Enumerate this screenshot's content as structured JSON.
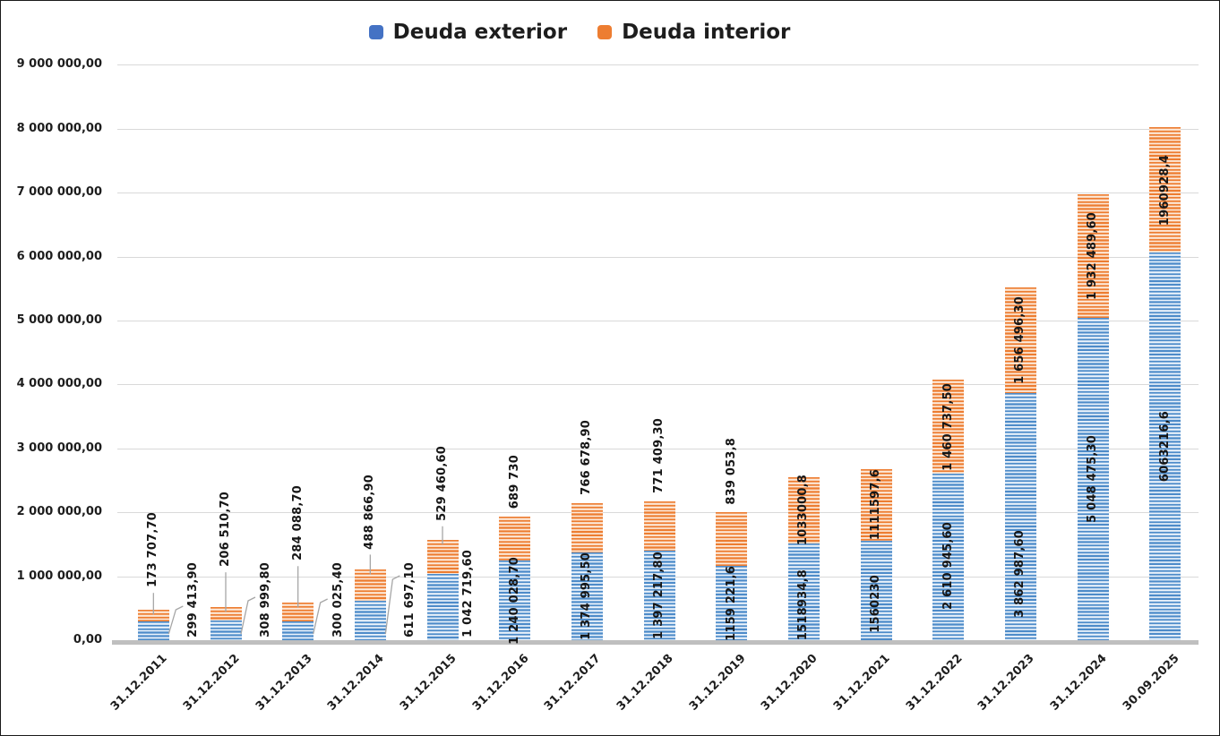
{
  "chart_data": {
    "type": "bar",
    "stacked": true,
    "title": "",
    "categories": [
      "31.12.2011",
      "31.12.2012",
      "31.12.2013",
      "31.12.2014",
      "31.12.2015",
      "31.12.2016",
      "31.12.2017",
      "31.12.2018",
      "31.12.2019",
      "31.12.2020",
      "31.12.2021",
      "31.12.2022",
      "31.12.2023",
      "31.12.2024",
      "30.09.2025"
    ],
    "series": [
      {
        "name": "Deuda exterior",
        "color": "#4472C4",
        "values": [
          299413.9,
          308999.8,
          300025.4,
          611697.1,
          1042719.6,
          1240028.7,
          1374995.5,
          1397217.8,
          1159221.6,
          1518934.8,
          1560230,
          2610945.6,
          3862987.6,
          5048475.3,
          6063216.6
        ],
        "labels": [
          "299 413,90",
          "308 999,80",
          "300 025,40",
          "611 697,10",
          "1 042 719,60",
          "1 240 028,70",
          "1 374 995,50",
          "1 397 217,80",
          "1159 221,6",
          "1518934,8",
          "1560230",
          "2 610 945,60",
          "3 862 987,60",
          "5 048 475,30",
          "6063216,6"
        ]
      },
      {
        "name": "Deuda interior",
        "color": "#ED7D31",
        "values": [
          173707.7,
          206510.7,
          284088.7,
          488866.9,
          529460.6,
          689730,
          766678.9,
          771409.3,
          839053.8,
          1033000.8,
          1111597.6,
          1460737.5,
          1656496.3,
          1932489.6,
          1960928.4
        ],
        "labels": [
          "173 707,70",
          "206 510,70",
          "284 088,70",
          "488 866,90",
          "529 460,60",
          "689 730",
          "766 678,90",
          "771 409,30",
          "839 053,8",
          "1033000,8",
          "1111597,6",
          "1 460 737,50",
          "1 656 496,30",
          "1 932 489,60",
          "1960928,4"
        ]
      }
    ],
    "y_axis": {
      "min": 0,
      "max": 9000000,
      "step": 1000000,
      "tick_labels": [
        "0,00",
        "1 000 000,00",
        "2 000 000,00",
        "3 000 000,00",
        "4 000 000,00",
        "5 000 000,00",
        "6 000 000,00",
        "7 000 000,00",
        "8 000 000,00",
        "9 000 000,00"
      ]
    },
    "grid": true,
    "legend_position": "top",
    "colors": {
      "gridline": "#d9d9d9",
      "axis_line": "#bfbfbf",
      "leader_line": "#a6a6a6",
      "text": "#1d1d1d"
    }
  }
}
